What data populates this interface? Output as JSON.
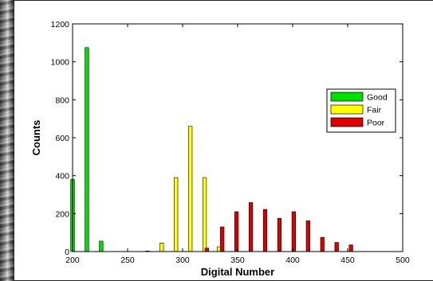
{
  "chart_data": {
    "type": "bar",
    "xlabel": "Digital Number",
    "ylabel": "Counts",
    "xlim": [
      200,
      500
    ],
    "ylim": [
      0,
      1200
    ],
    "xticks": [
      200,
      250,
      300,
      350,
      400,
      450,
      500
    ],
    "yticks": [
      0,
      200,
      400,
      600,
      800,
      1000,
      1200
    ],
    "grid": false,
    "legend_position": "right",
    "series": [
      {
        "name": "Good",
        "color": "#00e000",
        "points": [
          [
            200,
            380
          ],
          [
            213,
            1075
          ],
          [
            226,
            55
          ]
        ]
      },
      {
        "name": "Fair",
        "color": "#ffff00",
        "points": [
          [
            268,
            3
          ],
          [
            281,
            45
          ],
          [
            294,
            390
          ],
          [
            307,
            660
          ],
          [
            320,
            390
          ],
          [
            333,
            25
          ]
        ]
      },
      {
        "name": "Poor",
        "color": "#dd0000",
        "points": [
          [
            322,
            18
          ],
          [
            336,
            130
          ],
          [
            349,
            210
          ],
          [
            362,
            258
          ],
          [
            375,
            222
          ],
          [
            388,
            175
          ],
          [
            401,
            210
          ],
          [
            414,
            162
          ],
          [
            427,
            75
          ],
          [
            440,
            48
          ],
          [
            453,
            35
          ]
        ]
      }
    ]
  }
}
